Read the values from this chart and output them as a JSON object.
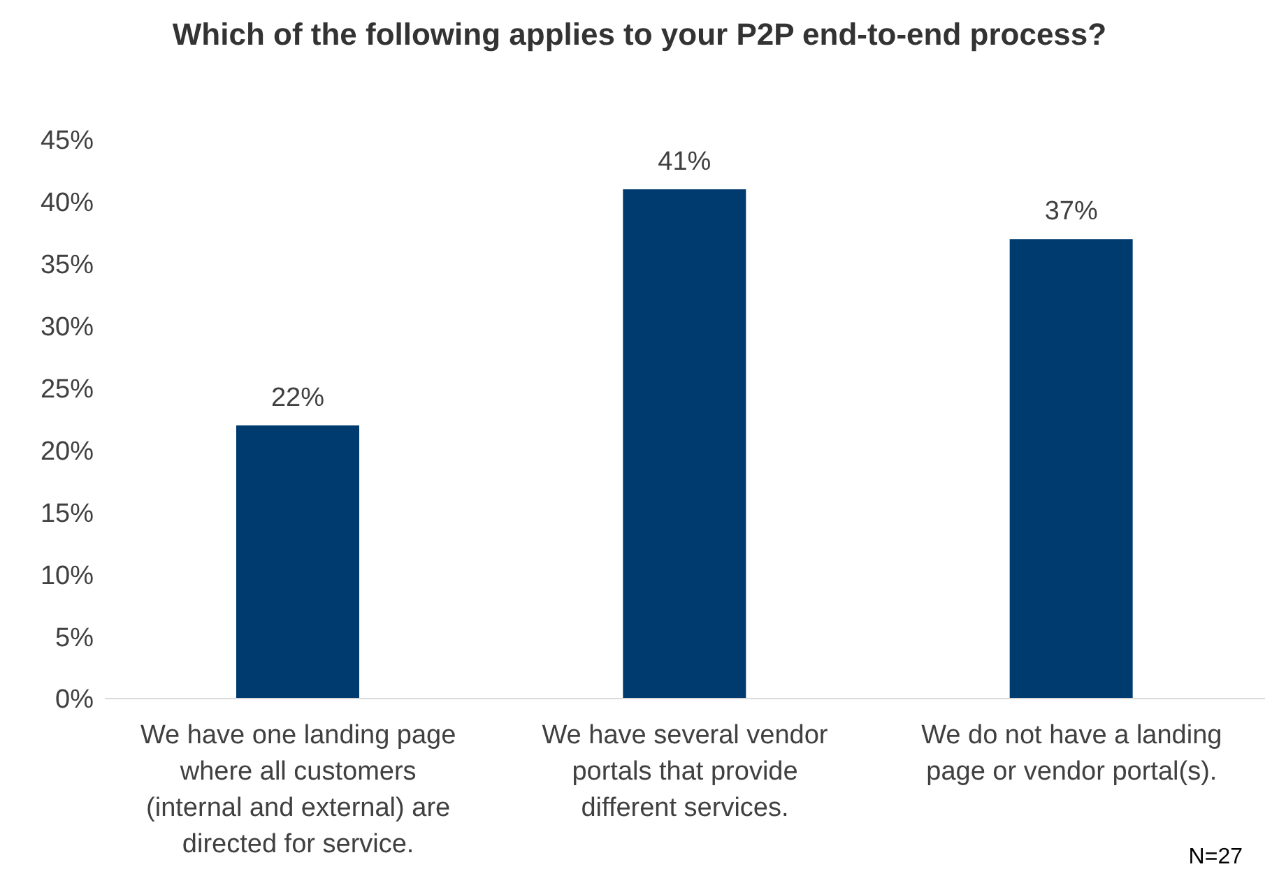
{
  "chart_data": {
    "type": "bar",
    "title": "Which of the following applies to your P2P end-to-end process?",
    "categories": [
      "We have one landing page where all customers (internal and external) are directed for service.",
      "We have several vendor portals that provide different services.",
      "We do not have a landing page or vendor portal(s)."
    ],
    "values": [
      22,
      41,
      37
    ],
    "color": "#003b6f",
    "value_labels": [
      "22%",
      "41%",
      "37%"
    ],
    "ylim": [
      0,
      45
    ],
    "yticks": [
      {
        "value": 0,
        "label": "0%"
      },
      {
        "value": 5,
        "label": "5%"
      },
      {
        "value": 10,
        "label": "10%"
      },
      {
        "value": 15,
        "label": "15%"
      },
      {
        "value": 20,
        "label": "20%"
      },
      {
        "value": 25,
        "label": "25%"
      },
      {
        "value": 30,
        "label": "30%"
      },
      {
        "value": 35,
        "label": "35%"
      },
      {
        "value": 40,
        "label": "40%"
      },
      {
        "value": 45,
        "label": "45%"
      }
    ],
    "grid": false,
    "annotations": [
      "N=27"
    ]
  }
}
